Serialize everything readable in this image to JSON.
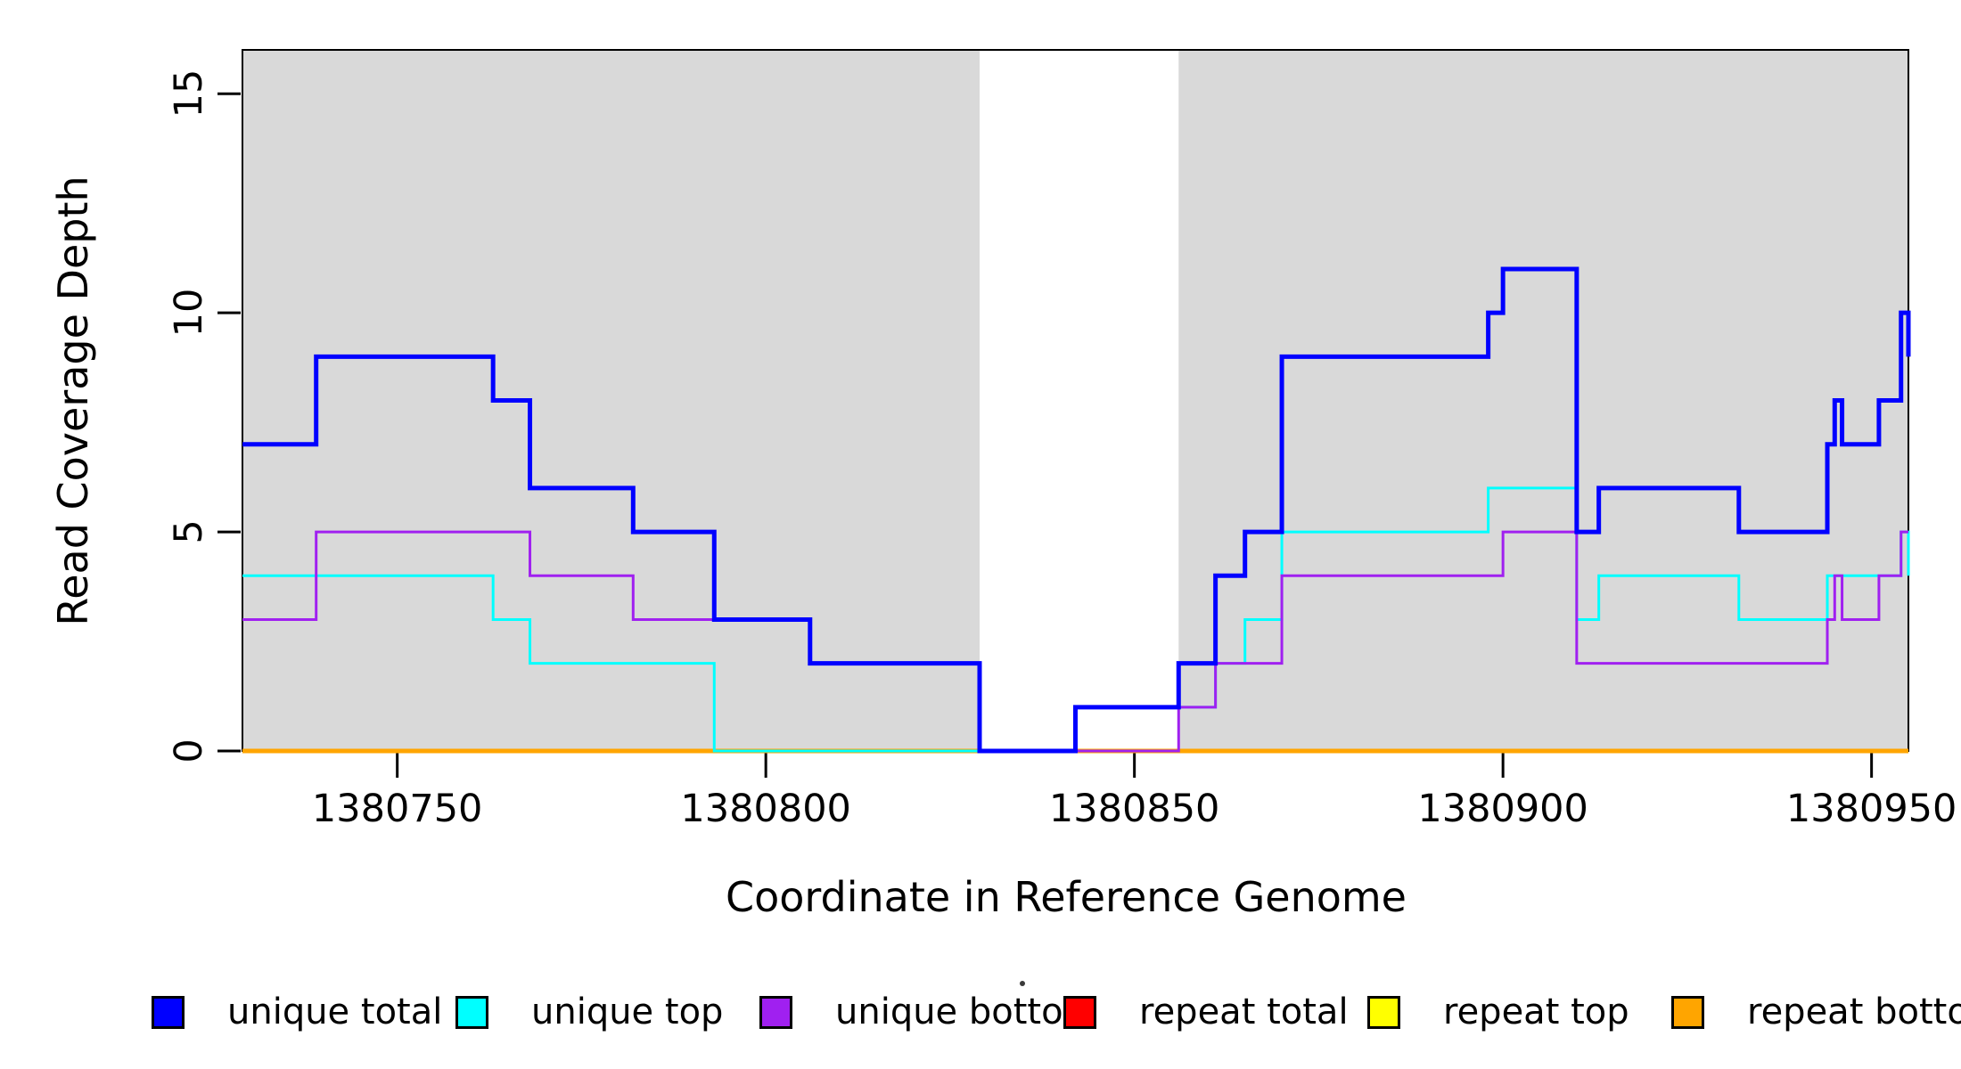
{
  "y_axis": {
    "label": "Read Coverage Depth",
    "ticks": [
      0,
      5,
      10,
      15
    ]
  },
  "x_axis": {
    "label": "Coordinate in Reference Genome",
    "ticks": [
      1380750,
      1380800,
      1380850,
      1380900,
      1380950
    ]
  },
  "chart_data": {
    "type": "line",
    "subtype": "step",
    "title": "",
    "xlabel": "Coordinate in Reference Genome",
    "ylabel": "Read Coverage Depth",
    "xlim": [
      1380729,
      1380955
    ],
    "ylim": [
      0,
      16
    ],
    "x_ticks": [
      1380750,
      1380800,
      1380850,
      1380900,
      1380950
    ],
    "y_ticks": [
      0,
      5,
      10,
      15
    ],
    "grid": "off",
    "background_color": "#FFFFFF",
    "shaded_region_color": "#D9D9D9",
    "shaded_unique_regions": [
      [
        1380729,
        1380829
      ],
      [
        1380856,
        1380955
      ]
    ],
    "note": "series values are [genome_coordinate, depth] step breakpoints; depth holds until the next breakpoint; repeat series are 0 across the full range",
    "series": [
      {
        "name": "repeat total",
        "color": "#FF0000",
        "line_width": 3,
        "values": [
          [
            1380729,
            0
          ]
        ]
      },
      {
        "name": "repeat top",
        "color": "#FFFF00",
        "line_width": 3,
        "values": [
          [
            1380729,
            0
          ]
        ]
      },
      {
        "name": "repeat bottom",
        "color": "#FFA500",
        "line_width": 5,
        "values": [
          [
            1380729,
            0
          ]
        ]
      },
      {
        "name": "unique top",
        "color": "#00FFFF",
        "line_width": 3,
        "values": [
          [
            1380729,
            4
          ],
          [
            1380763,
            3
          ],
          [
            1380768,
            2
          ],
          [
            1380793,
            0
          ],
          [
            1380842,
            1
          ],
          [
            1380861,
            2
          ],
          [
            1380865,
            3
          ],
          [
            1380870,
            5
          ],
          [
            1380898,
            6
          ],
          [
            1380910,
            3
          ],
          [
            1380913,
            4
          ],
          [
            1380932,
            3
          ],
          [
            1380944,
            4
          ],
          [
            1380954,
            5
          ],
          [
            1380955,
            4
          ]
        ]
      },
      {
        "name": "unique bottom",
        "color": "#A020F0",
        "line_width": 3,
        "values": [
          [
            1380729,
            3
          ],
          [
            1380739,
            5
          ],
          [
            1380768,
            4
          ],
          [
            1380782,
            3
          ],
          [
            1380806,
            2
          ],
          [
            1380829,
            0
          ],
          [
            1380856,
            1
          ],
          [
            1380861,
            2
          ],
          [
            1380870,
            4
          ],
          [
            1380900,
            5
          ],
          [
            1380910,
            2
          ],
          [
            1380944,
            3
          ],
          [
            1380945,
            4
          ],
          [
            1380946,
            3
          ],
          [
            1380951,
            4
          ],
          [
            1380954,
            5
          ]
        ]
      },
      {
        "name": "unique total",
        "color": "#0000FF",
        "line_width": 5,
        "values": [
          [
            1380729,
            7
          ],
          [
            1380739,
            9
          ],
          [
            1380763,
            8
          ],
          [
            1380768,
            6
          ],
          [
            1380782,
            5
          ],
          [
            1380793,
            3
          ],
          [
            1380806,
            2
          ],
          [
            1380829,
            0
          ],
          [
            1380842,
            1
          ],
          [
            1380856,
            2
          ],
          [
            1380861,
            4
          ],
          [
            1380865,
            5
          ],
          [
            1380870,
            9
          ],
          [
            1380898,
            10
          ],
          [
            1380900,
            11
          ],
          [
            1380910,
            5
          ],
          [
            1380913,
            6
          ],
          [
            1380932,
            5
          ],
          [
            1380944,
            7
          ],
          [
            1380945,
            8
          ],
          [
            1380946,
            7
          ],
          [
            1380951,
            8
          ],
          [
            1380954,
            10
          ],
          [
            1380955,
            9
          ]
        ]
      }
    ],
    "legend_position": "bottom"
  },
  "legend": {
    "items": [
      {
        "label": "unique total",
        "color": "#0000FF"
      },
      {
        "label": "unique top",
        "color": "#00FFFF"
      },
      {
        "label": "unique bottom",
        "color": "#A020F0"
      },
      {
        "label": "repeat total",
        "color": "#FF0000"
      },
      {
        "label": "repeat top",
        "color": "#FFFF00"
      },
      {
        "label": "repeat bottom",
        "color": "#FFA500"
      }
    ]
  }
}
